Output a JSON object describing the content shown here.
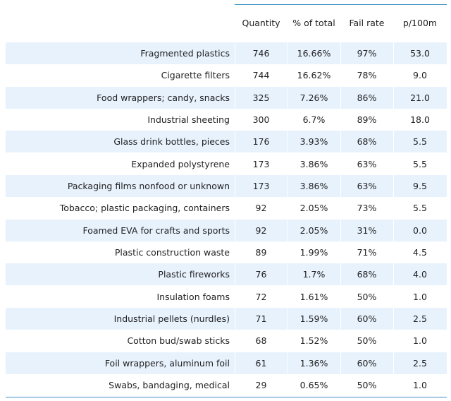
{
  "chart_data": {
    "type": "table",
    "columns": [
      "",
      "Quantity",
      "% of total",
      "Fail rate",
      "p/100m"
    ],
    "rows": [
      {
        "label": "Fragmented plastics",
        "quantity": "746",
        "pct": "16.66%",
        "fail": "97%",
        "p100": "53.0"
      },
      {
        "label": "Cigarette filters",
        "quantity": "744",
        "pct": "16.62%",
        "fail": "78%",
        "p100": "9.0"
      },
      {
        "label": "Food wrappers; candy, snacks",
        "quantity": "325",
        "pct": "7.26%",
        "fail": "86%",
        "p100": "21.0"
      },
      {
        "label": "Industrial sheeting",
        "quantity": "300",
        "pct": "6.7%",
        "fail": "89%",
        "p100": "18.0"
      },
      {
        "label": "Glass drink bottles, pieces",
        "quantity": "176",
        "pct": "3.93%",
        "fail": "68%",
        "p100": "5.5"
      },
      {
        "label": "Expanded polystyrene",
        "quantity": "173",
        "pct": "3.86%",
        "fail": "63%",
        "p100": "5.5"
      },
      {
        "label": "Packaging films nonfood or unknown",
        "quantity": "173",
        "pct": "3.86%",
        "fail": "63%",
        "p100": "9.5"
      },
      {
        "label": "Tobacco; plastic packaging, containers",
        "quantity": "92",
        "pct": "2.05%",
        "fail": "73%",
        "p100": "5.5"
      },
      {
        "label": "Foamed EVA for crafts and sports",
        "quantity": "92",
        "pct": "2.05%",
        "fail": "31%",
        "p100": "0.0"
      },
      {
        "label": "Plastic construction waste",
        "quantity": "89",
        "pct": "1.99%",
        "fail": "71%",
        "p100": "4.5"
      },
      {
        "label": "Plastic fireworks",
        "quantity": "76",
        "pct": "1.7%",
        "fail": "68%",
        "p100": "4.0"
      },
      {
        "label": "Insulation foams",
        "quantity": "72",
        "pct": "1.61%",
        "fail": "50%",
        "p100": "1.0"
      },
      {
        "label": "Industrial pellets (nurdles)",
        "quantity": "71",
        "pct": "1.59%",
        "fail": "60%",
        "p100": "2.5"
      },
      {
        "label": "Cotton bud/swab sticks",
        "quantity": "68",
        "pct": "1.52%",
        "fail": "50%",
        "p100": "1.0"
      },
      {
        "label": "Foil wrappers, aluminum foil",
        "quantity": "61",
        "pct": "1.36%",
        "fail": "60%",
        "p100": "2.5"
      },
      {
        "label": "Swabs, bandaging, medical",
        "quantity": "29",
        "pct": "0.65%",
        "fail": "50%",
        "p100": "1.0"
      }
    ],
    "colors": {
      "row_shade": "#e8f2fd",
      "rule": "#3a8fc4",
      "text": "#222222"
    }
  }
}
